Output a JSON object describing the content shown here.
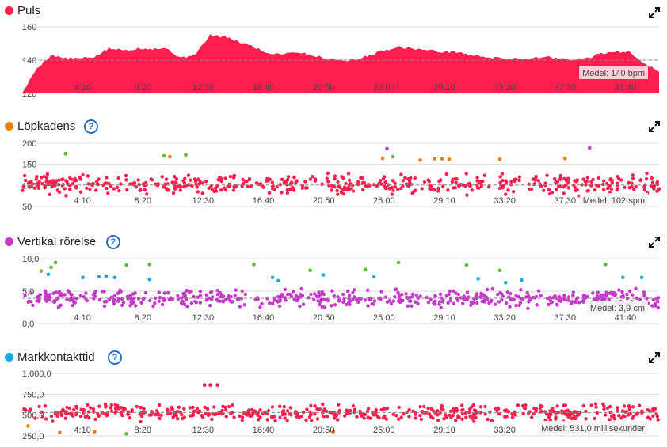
{
  "x_ticks": [
    "4:10",
    "8:20",
    "12:30",
    "16:40",
    "20:50",
    "25:00",
    "29:10",
    "33:20",
    "37:30",
    "41:40"
  ],
  "colors": {
    "red": "#ff1f4f",
    "orange": "#e9820c",
    "magenta": "#c638c9",
    "cyan": "#1aa9e6",
    "green": "#5dbb2f",
    "pink_label": "#f6c6d3",
    "grid": "#dddddd",
    "avg": "#888888"
  },
  "icons": {
    "expand": "expand-icon",
    "help": "help-icon"
  },
  "panels": [
    {
      "key": "puls",
      "title": "Puls",
      "dot_color": "#ff1f4f",
      "help": false,
      "avg_label": "Medel: 140 bpm",
      "chart_data": {
        "type": "area",
        "title": "Puls",
        "x_range_minutes": [
          0,
          44
        ],
        "ylim": [
          120,
          160
        ],
        "yticks": [
          "160",
          "140",
          "120"
        ],
        "ytick_values": [
          160,
          140,
          120
        ],
        "average": 140,
        "x_minutes": [
          0,
          1,
          2,
          3,
          4,
          5,
          6,
          7,
          8,
          9,
          10,
          11,
          12,
          13,
          14,
          15,
          16,
          17,
          18,
          19,
          20,
          21,
          22,
          23,
          24,
          25,
          26,
          27,
          28,
          29,
          30,
          31,
          32,
          33,
          34,
          35,
          36,
          37,
          38,
          39,
          40,
          41,
          42,
          43,
          44
        ],
        "values": [
          120,
          135,
          143,
          141,
          141,
          142,
          147,
          146,
          147,
          147,
          147,
          141,
          144,
          155,
          154,
          151,
          148,
          144,
          144,
          145,
          143,
          141,
          140,
          140,
          143,
          146,
          148,
          147,
          146,
          145,
          145,
          143,
          142,
          141,
          141,
          141,
          142,
          141,
          140,
          141,
          144,
          145,
          145,
          138,
          133
        ]
      }
    },
    {
      "key": "lopkadens",
      "title": "Löpkadens",
      "dot_color": "#e9820c",
      "help": true,
      "avg_label": "Medel: 102 spm",
      "chart_data": {
        "type": "scatter",
        "title": "Löpkadens",
        "x_range_minutes": [
          0,
          44
        ],
        "ylim": [
          50,
          200
        ],
        "yticks": [
          "200",
          "150",
          "100",
          "50"
        ],
        "ytick_values": [
          200,
          150,
          100,
          50
        ],
        "average": 102,
        "range_center": 102,
        "range_spread": 28,
        "point_count": 520,
        "seed": 11,
        "outliers": [
          {
            "x": 3.0,
            "y": 175,
            "color": "green"
          },
          {
            "x": 9.8,
            "y": 170,
            "color": "green"
          },
          {
            "x": 10.2,
            "y": 168,
            "color": "orange"
          },
          {
            "x": 11.3,
            "y": 172,
            "color": "green"
          },
          {
            "x": 24.9,
            "y": 164,
            "color": "orange"
          },
          {
            "x": 25.6,
            "y": 168,
            "color": "green"
          },
          {
            "x": 25.2,
            "y": 187,
            "color": "magenta"
          },
          {
            "x": 27.5,
            "y": 160,
            "color": "orange"
          },
          {
            "x": 28.5,
            "y": 163,
            "color": "orange"
          },
          {
            "x": 29.0,
            "y": 163,
            "color": "orange"
          },
          {
            "x": 29.5,
            "y": 162,
            "color": "orange"
          },
          {
            "x": 33.0,
            "y": 162,
            "color": "orange"
          },
          {
            "x": 37.5,
            "y": 164,
            "color": "orange"
          },
          {
            "x": 39.2,
            "y": 189,
            "color": "magenta"
          }
        ]
      }
    },
    {
      "key": "vertikal",
      "title": "Vertikal rörelse",
      "dot_color": "#c638c9",
      "help": true,
      "avg_label": "Medel: 3,9 cm",
      "chart_data": {
        "type": "scatter",
        "title": "Vertikal rörelse",
        "x_range_minutes": [
          0,
          44
        ],
        "ylim": [
          0,
          10
        ],
        "yticks": [
          "10,0",
          "5,0",
          "0,0"
        ],
        "ytick_values": [
          10,
          5,
          0
        ],
        "average": 3.9,
        "range_center": 3.9,
        "range_spread": 1.6,
        "point_count": 520,
        "seed": 23,
        "outliers": [
          {
            "x": 1.3,
            "y": 8.1,
            "color": "green"
          },
          {
            "x": 2.0,
            "y": 8.7,
            "color": "green"
          },
          {
            "x": 2.3,
            "y": 9.4,
            "color": "green"
          },
          {
            "x": 1.8,
            "y": 7.6,
            "color": "cyan"
          },
          {
            "x": 4.2,
            "y": 7.1,
            "color": "cyan"
          },
          {
            "x": 5.3,
            "y": 7.2,
            "color": "cyan"
          },
          {
            "x": 5.8,
            "y": 7.3,
            "color": "cyan"
          },
          {
            "x": 6.4,
            "y": 7.1,
            "color": "cyan"
          },
          {
            "x": 7.2,
            "y": 9.0,
            "color": "green"
          },
          {
            "x": 8.8,
            "y": 9.1,
            "color": "green"
          },
          {
            "x": 8.8,
            "y": 6.8,
            "color": "cyan"
          },
          {
            "x": 16.0,
            "y": 9.1,
            "color": "green"
          },
          {
            "x": 17.3,
            "y": 7.1,
            "color": "cyan"
          },
          {
            "x": 17.7,
            "y": 6.6,
            "color": "cyan"
          },
          {
            "x": 19.9,
            "y": 8.2,
            "color": "green"
          },
          {
            "x": 20.8,
            "y": 7.5,
            "color": "cyan"
          },
          {
            "x": 23.7,
            "y": 8.3,
            "color": "green"
          },
          {
            "x": 24.3,
            "y": 7.2,
            "color": "cyan"
          },
          {
            "x": 26.0,
            "y": 9.4,
            "color": "green"
          },
          {
            "x": 30.7,
            "y": 9.0,
            "color": "green"
          },
          {
            "x": 31.5,
            "y": 6.9,
            "color": "cyan"
          },
          {
            "x": 33.0,
            "y": 8.2,
            "color": "green"
          },
          {
            "x": 33.4,
            "y": 6.3,
            "color": "cyan"
          },
          {
            "x": 34.5,
            "y": 6.7,
            "color": "cyan"
          },
          {
            "x": 40.3,
            "y": 9.1,
            "color": "green"
          },
          {
            "x": 41.5,
            "y": 7.1,
            "color": "cyan"
          },
          {
            "x": 42.8,
            "y": 7.1,
            "color": "cyan"
          }
        ]
      }
    },
    {
      "key": "markkontakt",
      "title": "Markkontakttid",
      "dot_color": "#1aa9e6",
      "help": true,
      "avg_label": "Medel: 531,0 millisekunder",
      "chart_data": {
        "type": "scatter",
        "title": "Markkontakttid",
        "x_range_minutes": [
          0,
          44
        ],
        "ylim": [
          250,
          1000
        ],
        "yticks": [
          "1.000,0",
          "750,0",
          "500,0",
          "250,0"
        ],
        "ytick_values": [
          1000,
          750,
          500,
          250
        ],
        "average": 531,
        "range_center": 531,
        "range_spread": 115,
        "point_count": 520,
        "seed": 37,
        "outliers": [
          {
            "x": 0.4,
            "y": 370,
            "color": "orange"
          },
          {
            "x": 2.6,
            "y": 290,
            "color": "orange"
          },
          {
            "x": 5.0,
            "y": 300,
            "color": "orange"
          },
          {
            "x": 7.2,
            "y": 275,
            "color": "green"
          },
          {
            "x": 12.6,
            "y": 860,
            "color": "red"
          },
          {
            "x": 13.0,
            "y": 860,
            "color": "red"
          },
          {
            "x": 13.5,
            "y": 860,
            "color": "red"
          },
          {
            "x": 21.5,
            "y": 300,
            "color": "orange"
          }
        ]
      }
    }
  ]
}
